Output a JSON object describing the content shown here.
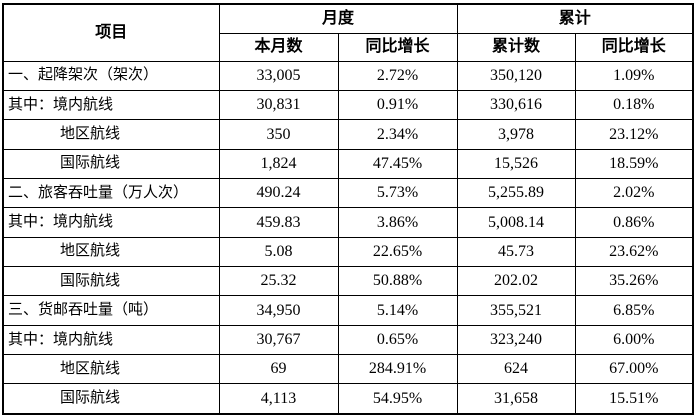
{
  "table": {
    "header": {
      "item": "项目",
      "monthly_group": "月度",
      "cumulative_group": "累计",
      "month_value": "本月数",
      "month_yoy": "同比增长",
      "cum_value": "累计数",
      "cum_yoy": "同比增长"
    },
    "rows": [
      {
        "label": "一、起降架次（架次）",
        "indent": false,
        "values": [
          "33,005",
          "2.72%",
          "350,120",
          "1.09%"
        ]
      },
      {
        "label": "其中：境内航线",
        "indent": false,
        "values": [
          "30,831",
          "0.91%",
          "330,616",
          "0.18%"
        ]
      },
      {
        "label": "地区航线",
        "indent": true,
        "values": [
          "350",
          "2.34%",
          "3,978",
          "23.12%"
        ]
      },
      {
        "label": "国际航线",
        "indent": true,
        "values": [
          "1,824",
          "47.45%",
          "15,526",
          "18.59%"
        ]
      },
      {
        "label": "二、旅客吞吐量（万人次）",
        "indent": false,
        "values": [
          "490.24",
          "5.73%",
          "5,255.89",
          "2.02%"
        ]
      },
      {
        "label": "其中：境内航线",
        "indent": false,
        "values": [
          "459.83",
          "3.86%",
          "5,008.14",
          "0.86%"
        ]
      },
      {
        "label": "地区航线",
        "indent": true,
        "values": [
          "5.08",
          "22.65%",
          "45.73",
          "23.62%"
        ]
      },
      {
        "label": "国际航线",
        "indent": true,
        "values": [
          "25.32",
          "50.88%",
          "202.02",
          "35.26%"
        ]
      },
      {
        "label": "三、货邮吞吐量（吨）",
        "indent": false,
        "values": [
          "34,950",
          "5.14%",
          "355,521",
          "6.85%"
        ]
      },
      {
        "label": "其中：境内航线",
        "indent": false,
        "values": [
          "30,767",
          "0.65%",
          "323,240",
          "6.00%"
        ]
      },
      {
        "label": "地区航线",
        "indent": true,
        "values": [
          "69",
          "284.91%",
          "624",
          "67.00%"
        ]
      },
      {
        "label": "国际航线",
        "indent": true,
        "values": [
          "4,113",
          "54.95%",
          "31,658",
          "15.51%"
        ]
      }
    ],
    "colors": {
      "border": "#000000",
      "text": "#000000",
      "background": "#ffffff"
    }
  }
}
